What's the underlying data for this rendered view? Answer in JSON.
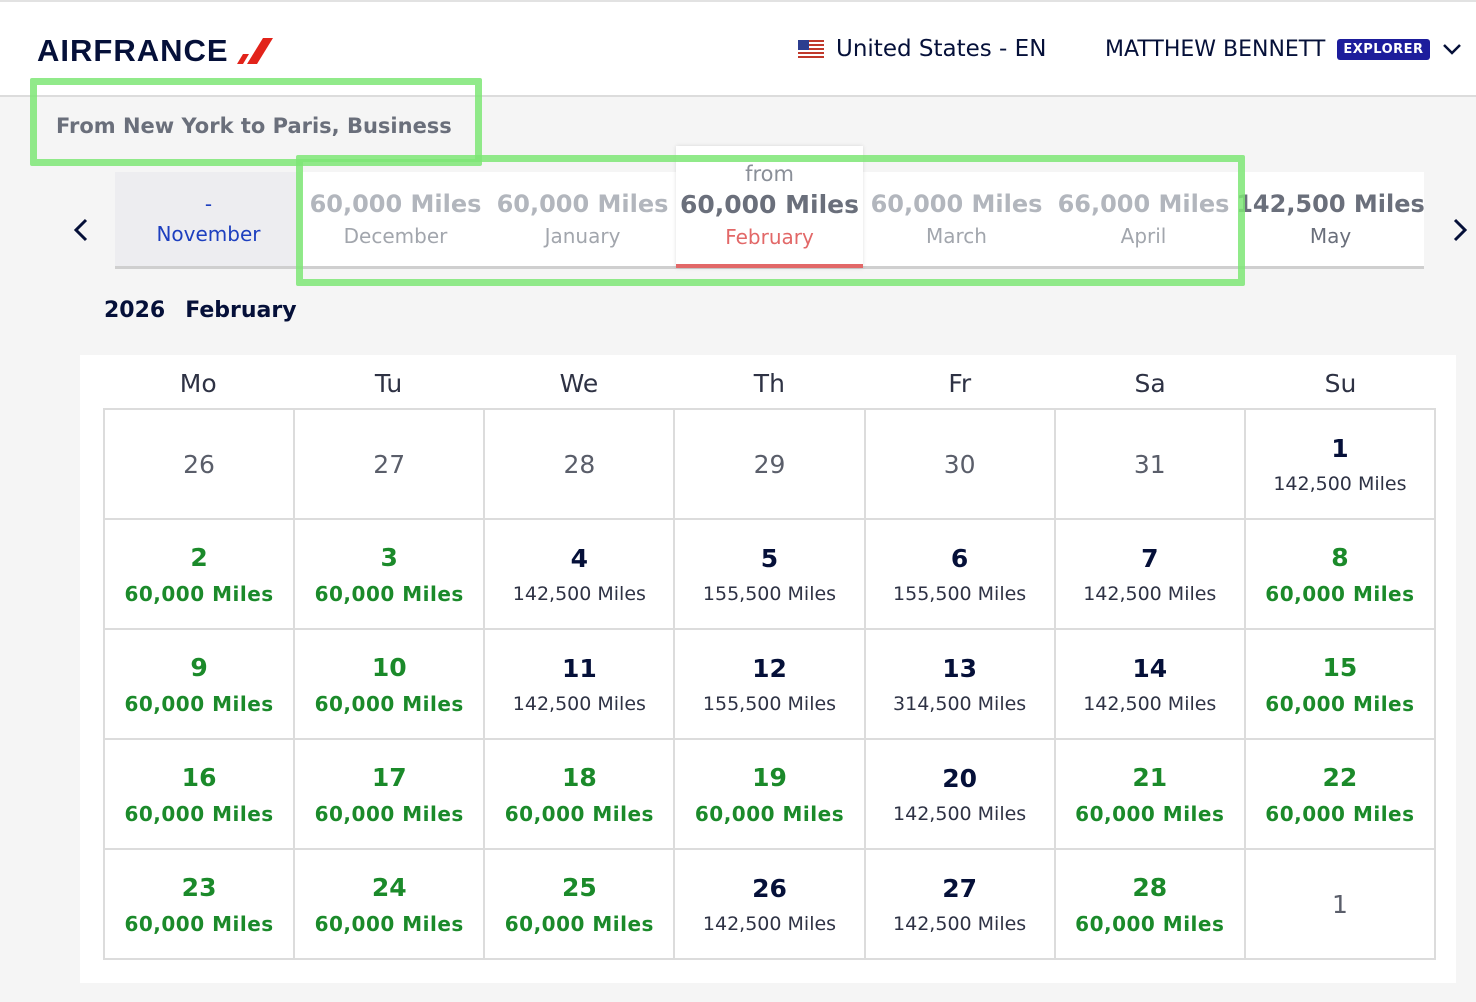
{
  "header": {
    "logo_text": "AIRFRANCE",
    "locale_flag": "us-flag-icon",
    "locale_label": "United States - EN",
    "user_name": "MATTHEW BENNETT",
    "user_badge": "EXPLORER",
    "brand_color": "#051039",
    "accent_color": "#e2231a"
  },
  "summary": {
    "route": "From New York to Paris, Business"
  },
  "months": [
    {
      "value": "-",
      "name": "November"
    },
    {
      "value": "60,000 Miles",
      "name": "December"
    },
    {
      "value": "60,000 Miles",
      "name": "January"
    },
    {
      "from": "from",
      "value": "60,000 Miles",
      "name": "February",
      "selected": true
    },
    {
      "value": "60,000 Miles",
      "name": "March"
    },
    {
      "value": "66,000 Miles",
      "name": "April"
    },
    {
      "value": "142,500 Miles",
      "name": "May"
    }
  ],
  "period": {
    "year": "2026",
    "month": "February"
  },
  "calendar": {
    "days_of_week": [
      "Mo",
      "Tu",
      "We",
      "Th",
      "Fr",
      "Sa",
      "Su"
    ],
    "days": [
      {
        "num": "26",
        "price": "",
        "state": "muted"
      },
      {
        "num": "27",
        "price": "",
        "state": "muted"
      },
      {
        "num": "28",
        "price": "",
        "state": "muted"
      },
      {
        "num": "29",
        "price": "",
        "state": "muted"
      },
      {
        "num": "30",
        "price": "",
        "state": "muted"
      },
      {
        "num": "31",
        "price": "",
        "state": "muted"
      },
      {
        "num": "1",
        "price": "142,500 Miles",
        "state": "normal"
      },
      {
        "num": "2",
        "price": "60,000 Miles",
        "state": "green"
      },
      {
        "num": "3",
        "price": "60,000 Miles",
        "state": "green"
      },
      {
        "num": "4",
        "price": "142,500 Miles",
        "state": "normal"
      },
      {
        "num": "5",
        "price": "155,500 Miles",
        "state": "normal"
      },
      {
        "num": "6",
        "price": "155,500 Miles",
        "state": "normal"
      },
      {
        "num": "7",
        "price": "142,500 Miles",
        "state": "normal"
      },
      {
        "num": "8",
        "price": "60,000 Miles",
        "state": "green"
      },
      {
        "num": "9",
        "price": "60,000 Miles",
        "state": "green"
      },
      {
        "num": "10",
        "price": "60,000 Miles",
        "state": "green"
      },
      {
        "num": "11",
        "price": "142,500 Miles",
        "state": "normal"
      },
      {
        "num": "12",
        "price": "155,500 Miles",
        "state": "normal"
      },
      {
        "num": "13",
        "price": "314,500 Miles",
        "state": "normal"
      },
      {
        "num": "14",
        "price": "142,500 Miles",
        "state": "normal"
      },
      {
        "num": "15",
        "price": "60,000 Miles",
        "state": "green"
      },
      {
        "num": "16",
        "price": "60,000 Miles",
        "state": "green"
      },
      {
        "num": "17",
        "price": "60,000 Miles",
        "state": "green"
      },
      {
        "num": "18",
        "price": "60,000 Miles",
        "state": "green"
      },
      {
        "num": "19",
        "price": "60,000 Miles",
        "state": "green"
      },
      {
        "num": "20",
        "price": "142,500 Miles",
        "state": "normal"
      },
      {
        "num": "21",
        "price": "60,000 Miles",
        "state": "green"
      },
      {
        "num": "22",
        "price": "60,000 Miles",
        "state": "green"
      },
      {
        "num": "23",
        "price": "60,000 Miles",
        "state": "green"
      },
      {
        "num": "24",
        "price": "60,000 Miles",
        "state": "green"
      },
      {
        "num": "25",
        "price": "60,000 Miles",
        "state": "green"
      },
      {
        "num": "26",
        "price": "142,500 Miles",
        "state": "normal"
      },
      {
        "num": "27",
        "price": "142,500 Miles",
        "state": "normal"
      },
      {
        "num": "28",
        "price": "60,000 Miles",
        "state": "green"
      },
      {
        "num": "1",
        "price": "",
        "state": "muted"
      }
    ]
  },
  "highlight_color": "#7ee675"
}
